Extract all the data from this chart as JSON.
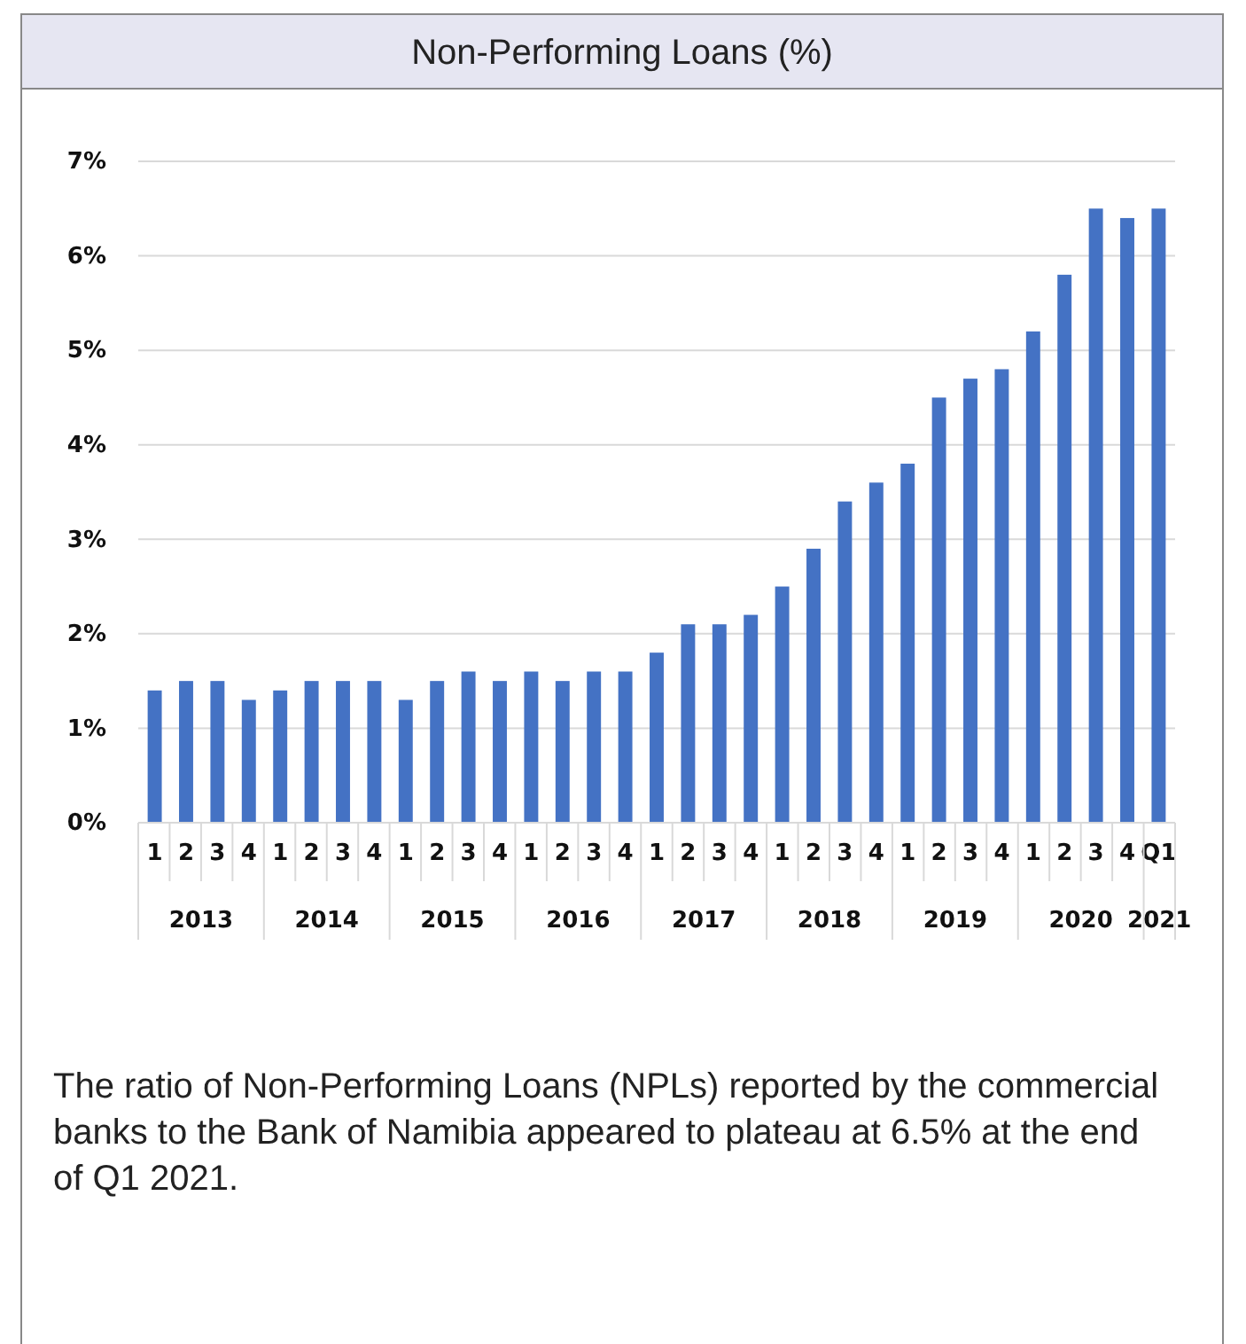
{
  "chart_data": {
    "type": "bar",
    "title": "Non-Performing Loans (%)",
    "categories": [
      "1",
      "2",
      "3",
      "4",
      "1",
      "2",
      "3",
      "4",
      "1",
      "2",
      "3",
      "4",
      "1",
      "2",
      "3",
      "4",
      "1",
      "2",
      "3",
      "4",
      "1",
      "2",
      "3",
      "4",
      "1",
      "2",
      "3",
      "4",
      "1",
      "2",
      "3",
      "4",
      "Q1"
    ],
    "values": [
      1.4,
      1.5,
      1.5,
      1.3,
      1.4,
      1.5,
      1.5,
      1.5,
      1.3,
      1.5,
      1.6,
      1.5,
      1.6,
      1.5,
      1.6,
      1.6,
      1.8,
      2.1,
      2.1,
      2.2,
      2.5,
      2.9,
      3.4,
      3.6,
      3.8,
      4.5,
      4.7,
      4.8,
      5.2,
      5.8,
      6.5,
      6.4,
      6.5
    ],
    "color": "#4472c4",
    "ylim": [
      0,
      7
    ],
    "yticks": [
      {
        "value": 0,
        "label": "0%"
      },
      {
        "value": 1,
        "label": "1%"
      },
      {
        "value": 2,
        "label": "2%"
      },
      {
        "value": 3,
        "label": "3%"
      },
      {
        "value": 4,
        "label": "4%"
      },
      {
        "value": 5,
        "label": "5%"
      },
      {
        "value": 6,
        "label": "6%"
      },
      {
        "value": 7,
        "label": "7%"
      }
    ],
    "grid": "y",
    "annotations": [
      "2013",
      "2014",
      "2015",
      "2016",
      "2017",
      "2018",
      "2019",
      "2020",
      "2021",
      "The ratio of Non-Performing Loans (NPLs) reported by the commercial banks to the Bank of Namibia appeared to plateau at 6.5% at the end of Q1 2021."
    ]
  }
}
